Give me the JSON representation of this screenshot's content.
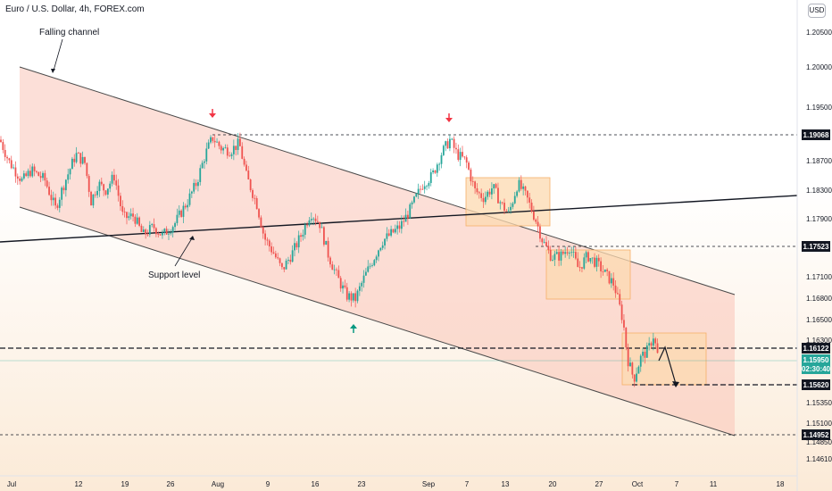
{
  "header": {
    "title": "Euro / U.S. Dollar, 4h, FOREX.com",
    "currency_button": "USD"
  },
  "colors": {
    "bull": "#26a69a",
    "bear": "#ef5350",
    "channel_fill": "#f9c5b8",
    "box_fill": "#fcd9b0",
    "box_stroke": "#f5b06a",
    "current_badge": "#26a69a",
    "arrow_down": "#f23645",
    "arrow_up": "#089981"
  },
  "annotations": {
    "falling_channel": "Falling channel",
    "support_level": "Support level"
  },
  "price_labels": {
    "level_high": "1.19068",
    "level_mid": "1.17523",
    "level_resistance": "1.16122",
    "current_price": "1.15950",
    "countdown": "02:30:40",
    "level_target": "1.15620",
    "level_low": "1.14952"
  },
  "chart_data": {
    "type": "candlestick",
    "symbol": "Euro / U.S. Dollar",
    "timeframe": "4h",
    "source": "FOREX.com",
    "y_axis": {
      "ylim": [
        1.1453,
        1.2104
      ],
      "ticks": [
        "1.20500",
        "1.20000",
        "1.19500",
        "1.18700",
        "1.18300",
        "1.17900",
        "1.17100",
        "1.16800",
        "1.16500",
        "1.16300",
        "1.15350",
        "1.15100",
        "1.14850",
        "1.14610"
      ]
    },
    "x_axis": {
      "ticks": [
        "Jul",
        "12",
        "19",
        "26",
        "Aug",
        "9",
        "16",
        "23",
        "Sep",
        "7",
        "13",
        "20",
        "27",
        "Oct",
        "7",
        "11",
        "18"
      ]
    },
    "horizontal_levels": [
      1.19068,
      1.17523,
      1.16122,
      1.1562,
      1.14952
    ],
    "current_price": 1.1595,
    "series_path_keypoints": [
      [
        0,
        1.19
      ],
      [
        10,
        1.187
      ],
      [
        25,
        1.1843
      ],
      [
        35,
        1.1858
      ],
      [
        50,
        1.1845
      ],
      [
        62,
        1.1805
      ],
      [
        72,
        1.184
      ],
      [
        85,
        1.188
      ],
      [
        95,
        1.1868
      ],
      [
        102,
        1.1815
      ],
      [
        110,
        1.184
      ],
      [
        118,
        1.183
      ],
      [
        128,
        1.185
      ],
      [
        138,
        1.1792
      ],
      [
        150,
        1.1795
      ],
      [
        160,
        1.1768
      ],
      [
        172,
        1.178
      ],
      [
        182,
        1.1768
      ],
      [
        196,
        1.1785
      ],
      [
        210,
        1.1815
      ],
      [
        220,
        1.184
      ],
      [
        230,
        1.188
      ],
      [
        238,
        1.1903
      ],
      [
        248,
        1.1888
      ],
      [
        258,
        1.1885
      ],
      [
        268,
        1.1895
      ],
      [
        276,
        1.185
      ],
      [
        288,
        1.181
      ],
      [
        296,
        1.1765
      ],
      [
        306,
        1.1745
      ],
      [
        316,
        1.172
      ],
      [
        328,
        1.1745
      ],
      [
        338,
        1.177
      ],
      [
        348,
        1.18
      ],
      [
        358,
        1.1785
      ],
      [
        368,
        1.174
      ],
      [
        378,
        1.171
      ],
      [
        388,
        1.1685
      ],
      [
        398,
        1.168
      ],
      [
        408,
        1.171
      ],
      [
        418,
        1.1735
      ],
      [
        428,
        1.176
      ],
      [
        438,
        1.177
      ],
      [
        448,
        1.178
      ],
      [
        458,
        1.18
      ],
      [
        466,
        1.182
      ],
      [
        474,
        1.184
      ],
      [
        484,
        1.185
      ],
      [
        494,
        1.188
      ],
      [
        504,
        1.19
      ],
      [
        512,
        1.188
      ],
      [
        522,
        1.187
      ],
      [
        532,
        1.183
      ],
      [
        542,
        1.182
      ],
      [
        552,
        1.1835
      ],
      [
        562,
        1.181
      ],
      [
        570,
        1.1798
      ],
      [
        580,
        1.184
      ],
      [
        590,
        1.182
      ],
      [
        600,
        1.179
      ],
      [
        608,
        1.176
      ],
      [
        618,
        1.1738
      ],
      [
        628,
        1.174
      ],
      [
        638,
        1.1752
      ],
      [
        648,
        1.1722
      ],
      [
        658,
        1.174
      ],
      [
        668,
        1.173
      ],
      [
        678,
        1.1715
      ],
      [
        688,
        1.17
      ],
      [
        698,
        1.165
      ],
      [
        703,
        1.1598
      ],
      [
        710,
        1.157
      ],
      [
        718,
        1.16
      ],
      [
        726,
        1.161
      ],
      [
        732,
        1.163
      ],
      [
        738,
        1.1595
      ]
    ]
  }
}
